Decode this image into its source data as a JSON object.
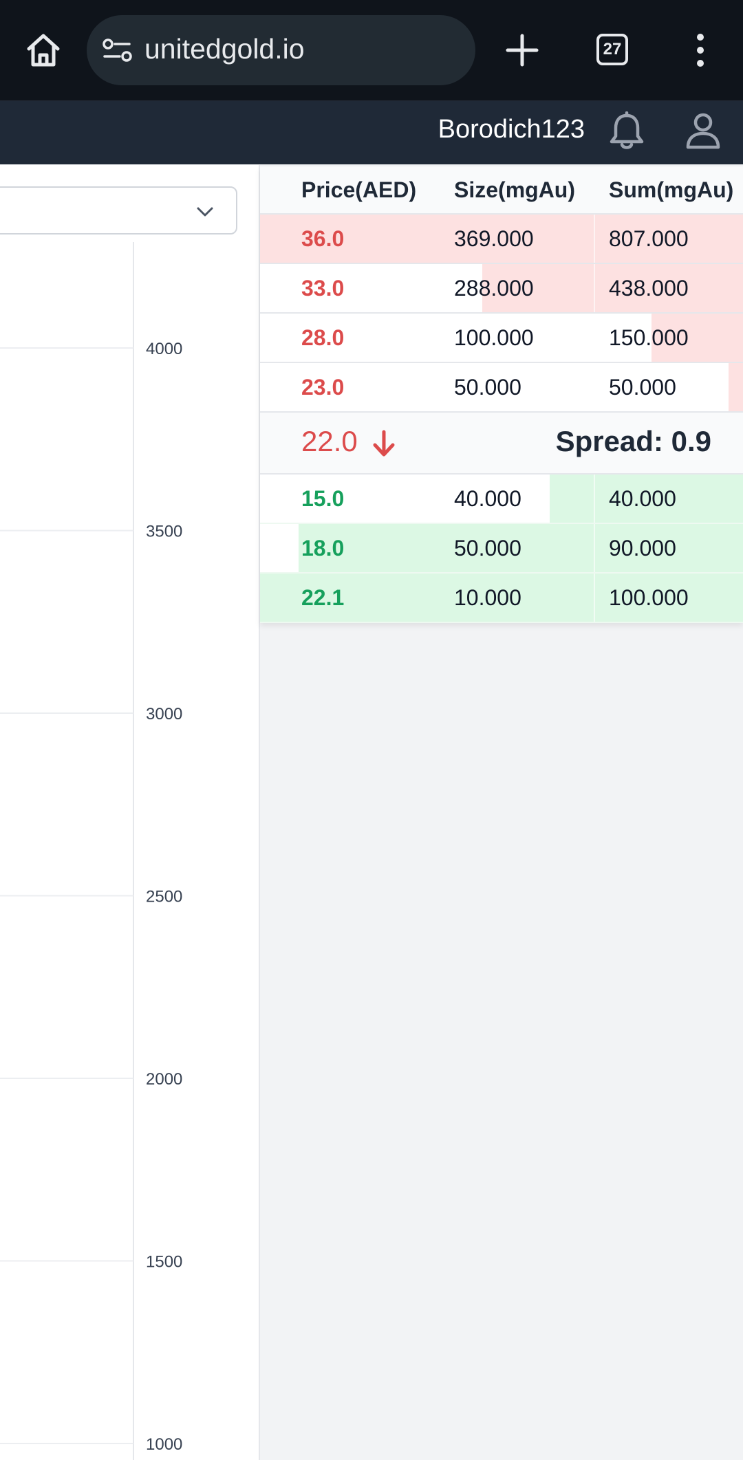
{
  "browser": {
    "url": "unitedgold.io",
    "tab_count": "27"
  },
  "header": {
    "username": "Borodich123"
  },
  "chart": {
    "y_ticks": [
      "4000",
      "3500",
      "3000",
      "2500",
      "2000",
      "1500",
      "1000"
    ]
  },
  "orderbook": {
    "headers": {
      "price": "Price(AED)",
      "size": "Size(mgAu)",
      "sum": "Sum(mgAu)"
    },
    "asks": [
      {
        "price": "36.0",
        "size": "369.000",
        "sum": "807.000",
        "depth": 1.0
      },
      {
        "price": "33.0",
        "size": "288.000",
        "sum": "438.000",
        "depth": 0.54
      },
      {
        "price": "28.0",
        "size": "100.000",
        "sum": "150.000",
        "depth": 0.19
      },
      {
        "price": "23.0",
        "size": "50.000",
        "sum": "50.000",
        "depth": 0.03
      }
    ],
    "mid": {
      "price": "22.0",
      "direction": "down",
      "spread_label": "Spread: 0.9"
    },
    "bids": [
      {
        "price": "15.0",
        "size": "40.000",
        "sum": "40.000",
        "depth": 0.4
      },
      {
        "price": "18.0",
        "size": "50.000",
        "sum": "90.000",
        "depth": 0.92
      },
      {
        "price": "22.1",
        "size": "10.000",
        "sum": "100.000",
        "depth": 1.0
      }
    ]
  },
  "colors": {
    "ask": "#dc4b4b",
    "bid": "#16a05c",
    "ask_fill": "#fde1e1",
    "bid_fill": "#dcf8e4"
  }
}
